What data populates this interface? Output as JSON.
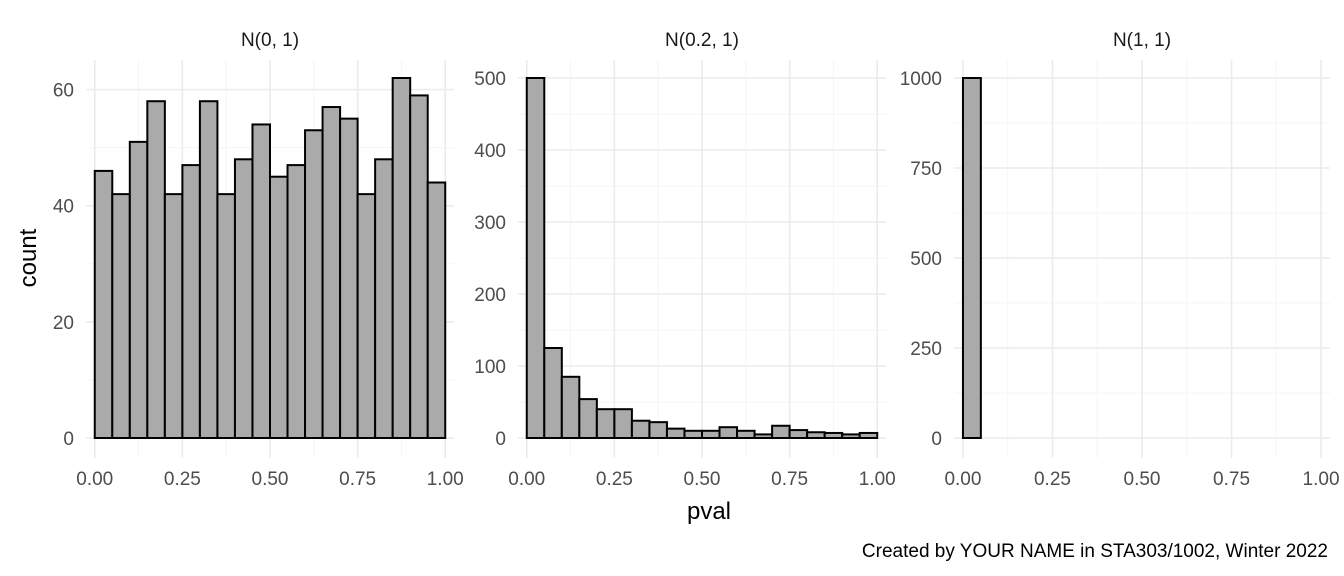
{
  "chart_data": {
    "type": "bar",
    "subtype": "histogram-facets",
    "xlabel": "pval",
    "ylabel": "count",
    "caption": "Created by YOUR NAME in STA303/1002, Winter 2022",
    "bar_fill": "#aaaaaa",
    "bar_stroke": "#000000",
    "x_ticks": [
      "0.00",
      "0.25",
      "0.50",
      "0.75",
      "1.00"
    ],
    "x_tick_values": [
      0,
      0.25,
      0.5,
      0.75,
      1.0
    ],
    "xlim": [
      -0.025,
      1.025
    ],
    "grid": true,
    "bin_width": 0.05,
    "bin_starts": [
      0,
      0.05,
      0.1,
      0.15,
      0.2,
      0.25,
      0.3,
      0.35,
      0.4,
      0.45,
      0.5,
      0.55,
      0.6,
      0.65,
      0.7,
      0.75,
      0.8,
      0.85,
      0.9,
      0.95
    ],
    "facets": [
      {
        "title": "N(0, 1)",
        "y_ticks": [
          "0",
          "20",
          "40",
          "60"
        ],
        "y_tick_values": [
          0,
          20,
          40,
          60
        ],
        "ylim": [
          0,
          62
        ],
        "values": [
          46,
          42,
          51,
          58,
          42,
          47,
          58,
          42,
          48,
          54,
          45,
          47,
          53,
          57,
          55,
          42,
          48,
          62,
          59,
          44
        ]
      },
      {
        "title": "N(0.2, 1)",
        "y_ticks": [
          "0",
          "100",
          "200",
          "300",
          "400",
          "500"
        ],
        "y_tick_values": [
          0,
          100,
          200,
          300,
          400,
          500
        ],
        "ylim": [
          0,
          500
        ],
        "values": [
          500,
          125,
          85,
          54,
          40,
          40,
          24,
          22,
          13,
          10,
          10,
          15,
          10,
          5,
          17,
          11,
          8,
          7,
          5,
          7
        ]
      },
      {
        "title": "N(1, 1)",
        "y_ticks": [
          "0",
          "250",
          "500",
          "750",
          "1000"
        ],
        "y_tick_values": [
          0,
          250,
          500,
          750,
          1000
        ],
        "ylim": [
          0,
          1000
        ],
        "values": [
          1000,
          0,
          0,
          0,
          0,
          0,
          0,
          0,
          0,
          0,
          0,
          0,
          0,
          0,
          0,
          0,
          0,
          0,
          0,
          0
        ]
      }
    ]
  }
}
